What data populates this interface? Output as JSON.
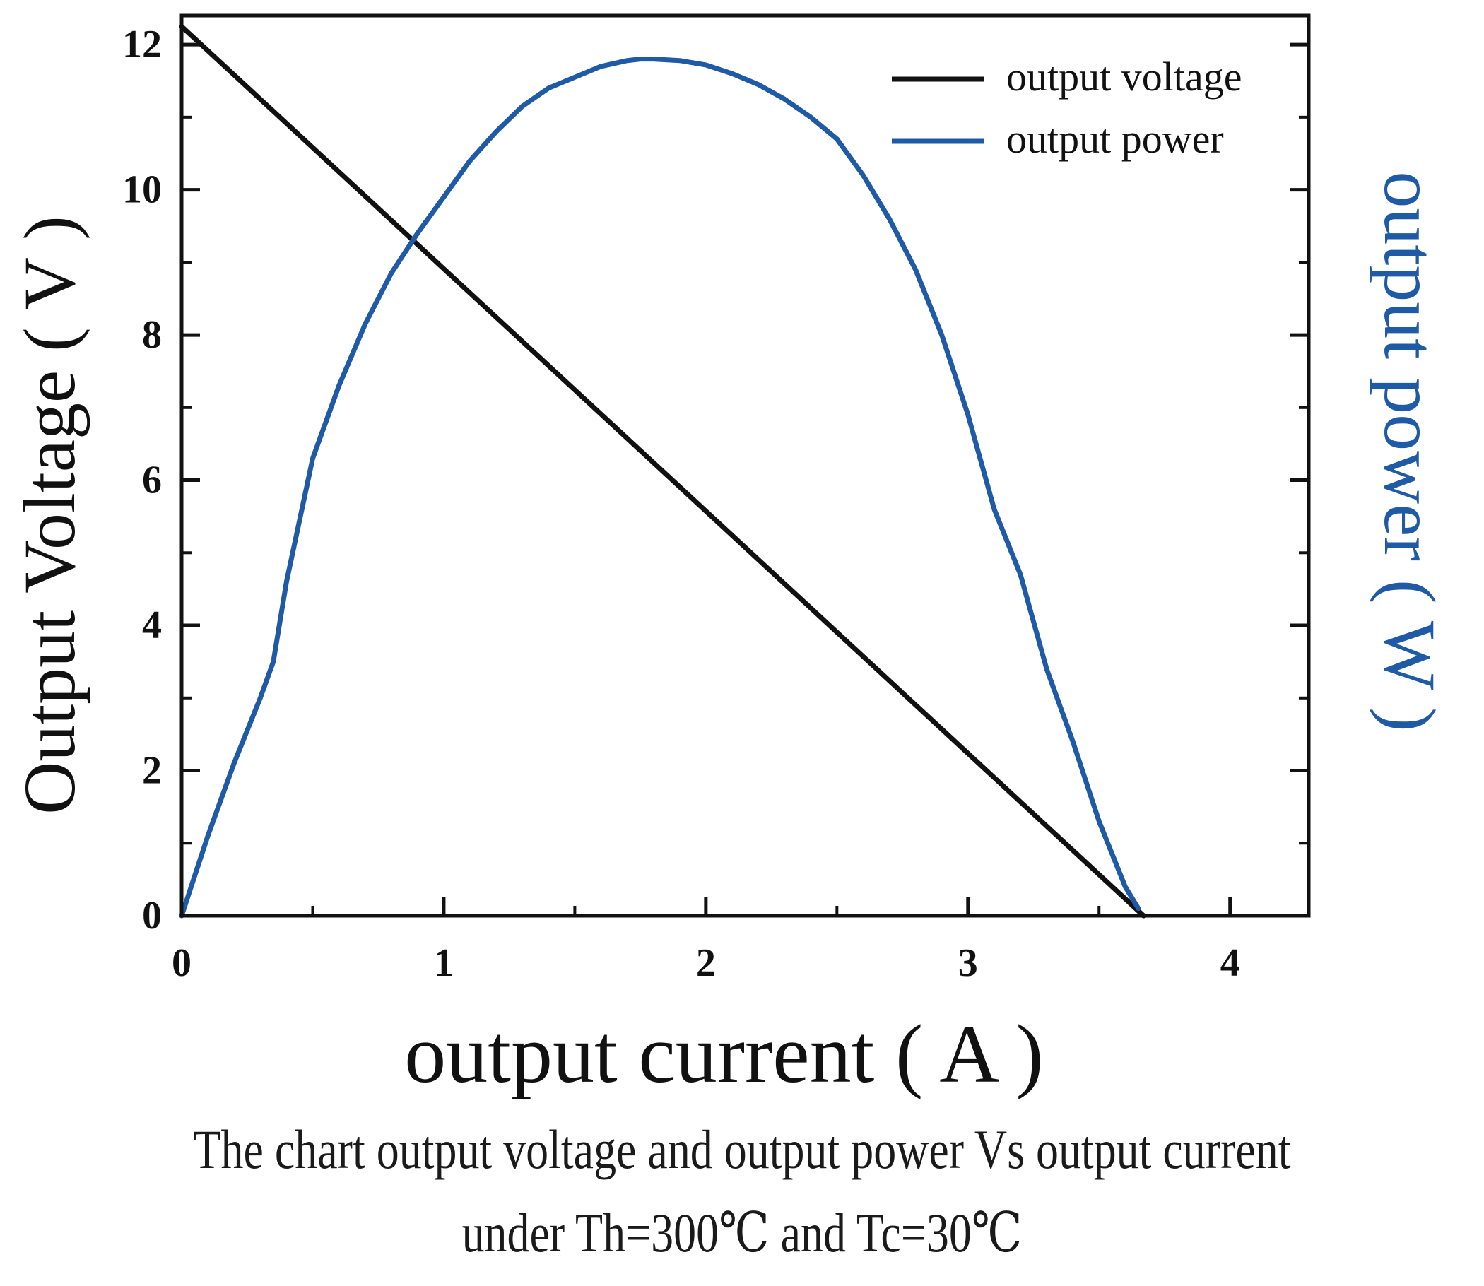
{
  "chart_data": {
    "type": "line",
    "xlabel": "output current ( A )",
    "ylabel_left": "Output Voltage ( V )",
    "ylabel_right": "output power ( W )",
    "xlim": [
      0,
      4.3
    ],
    "ylim_left": [
      0,
      12.4
    ],
    "ylim_right": [
      0,
      12.4
    ],
    "x_ticks": [
      "0",
      "1",
      "2",
      "3",
      "4"
    ],
    "y_ticks_left": [
      "0",
      "2",
      "4",
      "6",
      "8",
      "10",
      "12"
    ],
    "grid": false,
    "legend_position": "top-right",
    "colors": {
      "voltage": "#111111",
      "power": "#1f5aa6"
    },
    "series": [
      {
        "name": "output voltage",
        "axis": "left",
        "color": "#111111",
        "x": [
          0,
          3.67
        ],
        "y": [
          12.25,
          0
        ]
      },
      {
        "name": "output power",
        "axis": "right",
        "color": "#1f5aa6",
        "x": [
          0,
          0.1,
          0.2,
          0.3,
          0.35,
          0.4,
          0.5,
          0.6,
          0.7,
          0.8,
          0.9,
          1.0,
          1.1,
          1.2,
          1.3,
          1.4,
          1.5,
          1.6,
          1.7,
          1.75,
          1.8,
          1.9,
          2.0,
          2.1,
          2.2,
          2.3,
          2.4,
          2.5,
          2.6,
          2.7,
          2.8,
          2.9,
          3.0,
          3.1,
          3.2,
          3.3,
          3.35,
          3.4,
          3.5,
          3.6,
          3.65
        ],
        "y": [
          0,
          1.1,
          2.1,
          3.0,
          3.5,
          4.6,
          6.3,
          7.3,
          8.15,
          8.85,
          9.4,
          9.9,
          10.4,
          10.8,
          11.15,
          11.4,
          11.55,
          11.7,
          11.78,
          11.8,
          11.8,
          11.78,
          11.72,
          11.6,
          11.45,
          11.25,
          11.0,
          10.7,
          10.2,
          9.6,
          8.9,
          8.0,
          6.9,
          5.6,
          4.7,
          3.4,
          2.9,
          2.4,
          1.3,
          0.4,
          0.1
        ]
      }
    ]
  },
  "caption": {
    "line1": "The chart output voltage and output power Vs output current",
    "line2": "under Th=300℃ and Tc=30℃"
  }
}
